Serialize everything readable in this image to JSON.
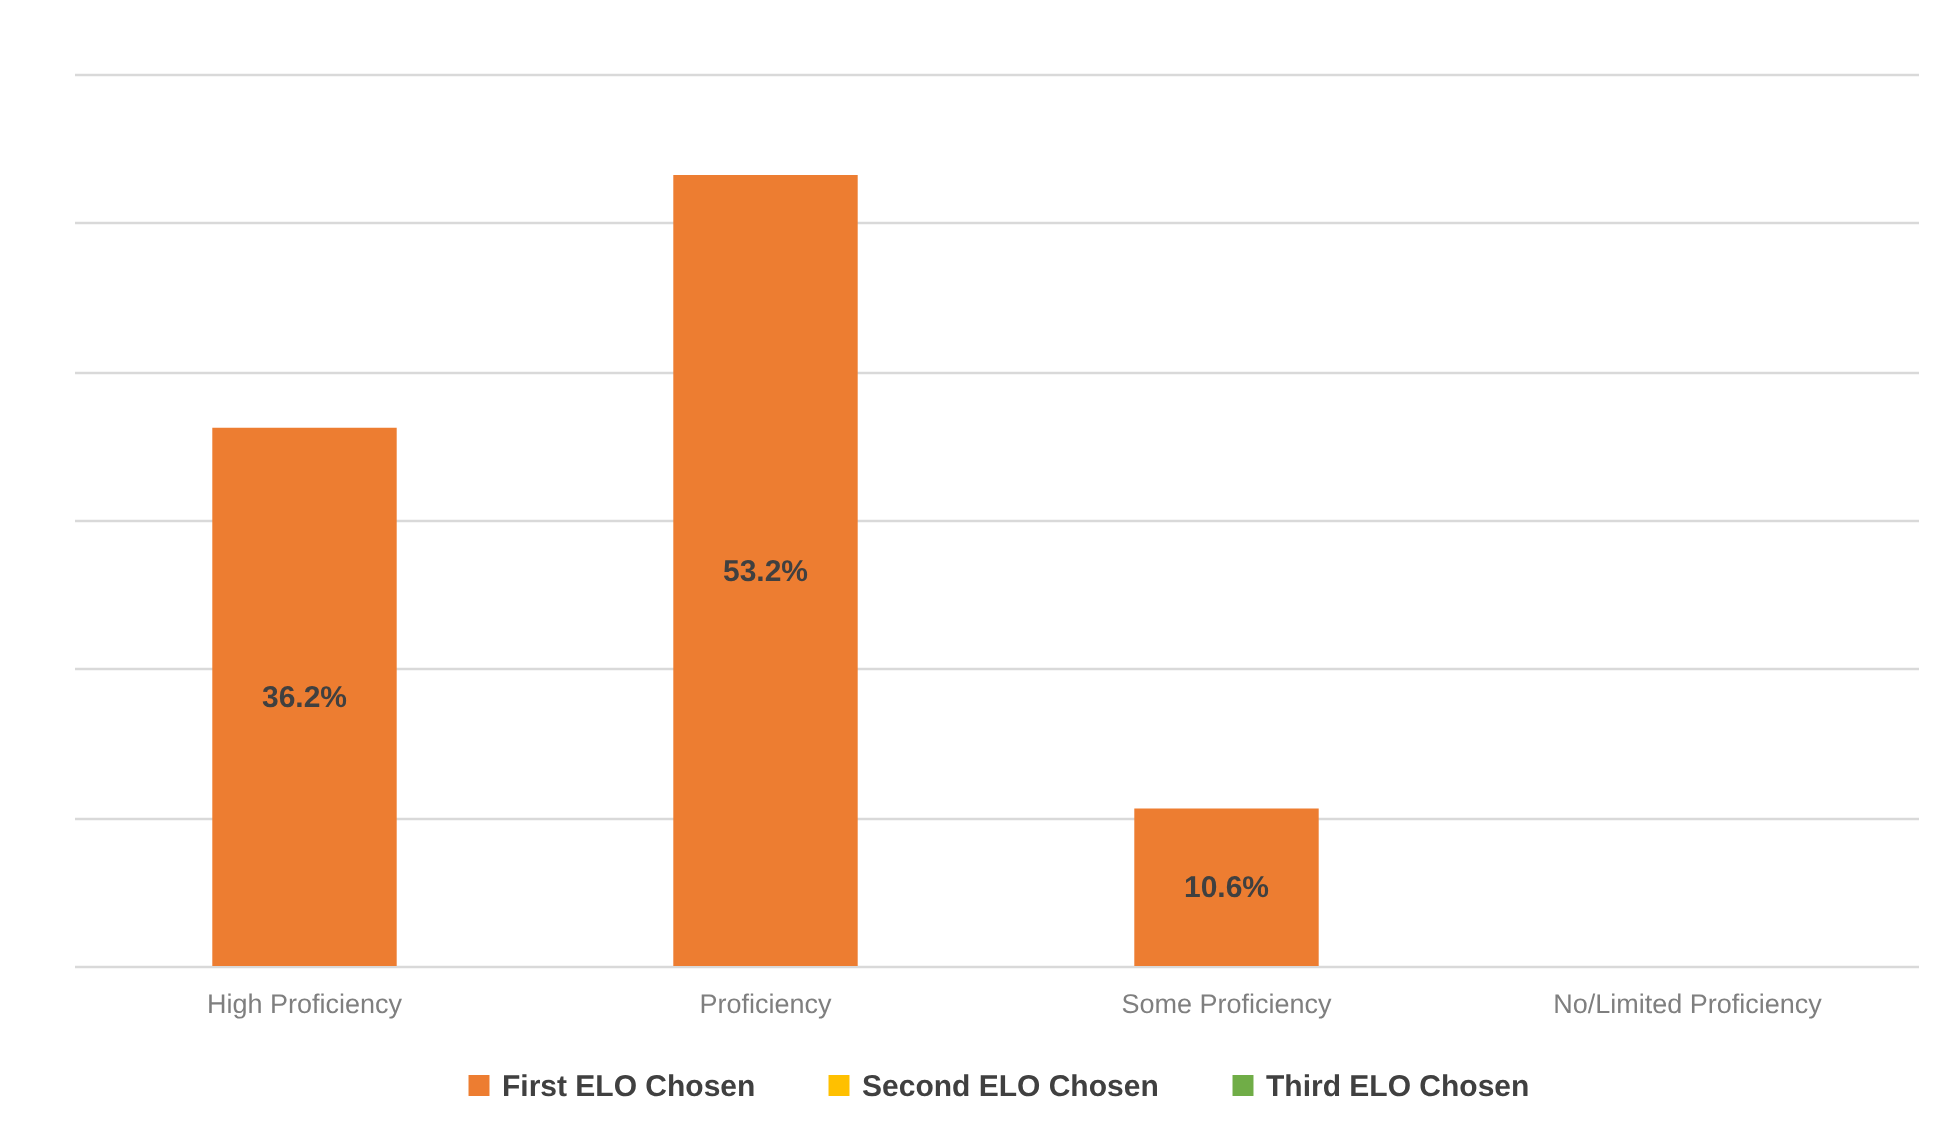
{
  "chart_data": {
    "type": "bar",
    "categories": [
      "High Proficiency",
      "Proficiency",
      "Some Proficiency",
      "No/Limited Proficiency"
    ],
    "series": [
      {
        "name": "First ELO Chosen",
        "color": "#ed7d31",
        "values": [
          36.2,
          53.2,
          10.6,
          null
        ],
        "value_labels": [
          "36.2%",
          "53.2%",
          "10.6%",
          null
        ]
      },
      {
        "name": "Second ELO Chosen",
        "color": "#ffc000",
        "values": [
          null,
          null,
          null,
          null
        ]
      },
      {
        "name": "Third ELO Chosen",
        "color": "#70ad47",
        "values": [
          null,
          null,
          null,
          null
        ]
      }
    ],
    "ylim": [
      0,
      60
    ],
    "yticks": [
      {
        "value": 0,
        "label": null
      },
      {
        "value": 10,
        "label": null
      },
      {
        "value": 20,
        "label": null
      },
      {
        "value": 30,
        "label": null
      },
      {
        "value": 40,
        "label": null
      },
      {
        "value": 50,
        "label": null
      },
      {
        "value": 60,
        "label": null
      }
    ],
    "tick_labels": "x",
    "grid": "y",
    "legend": "bottom"
  }
}
